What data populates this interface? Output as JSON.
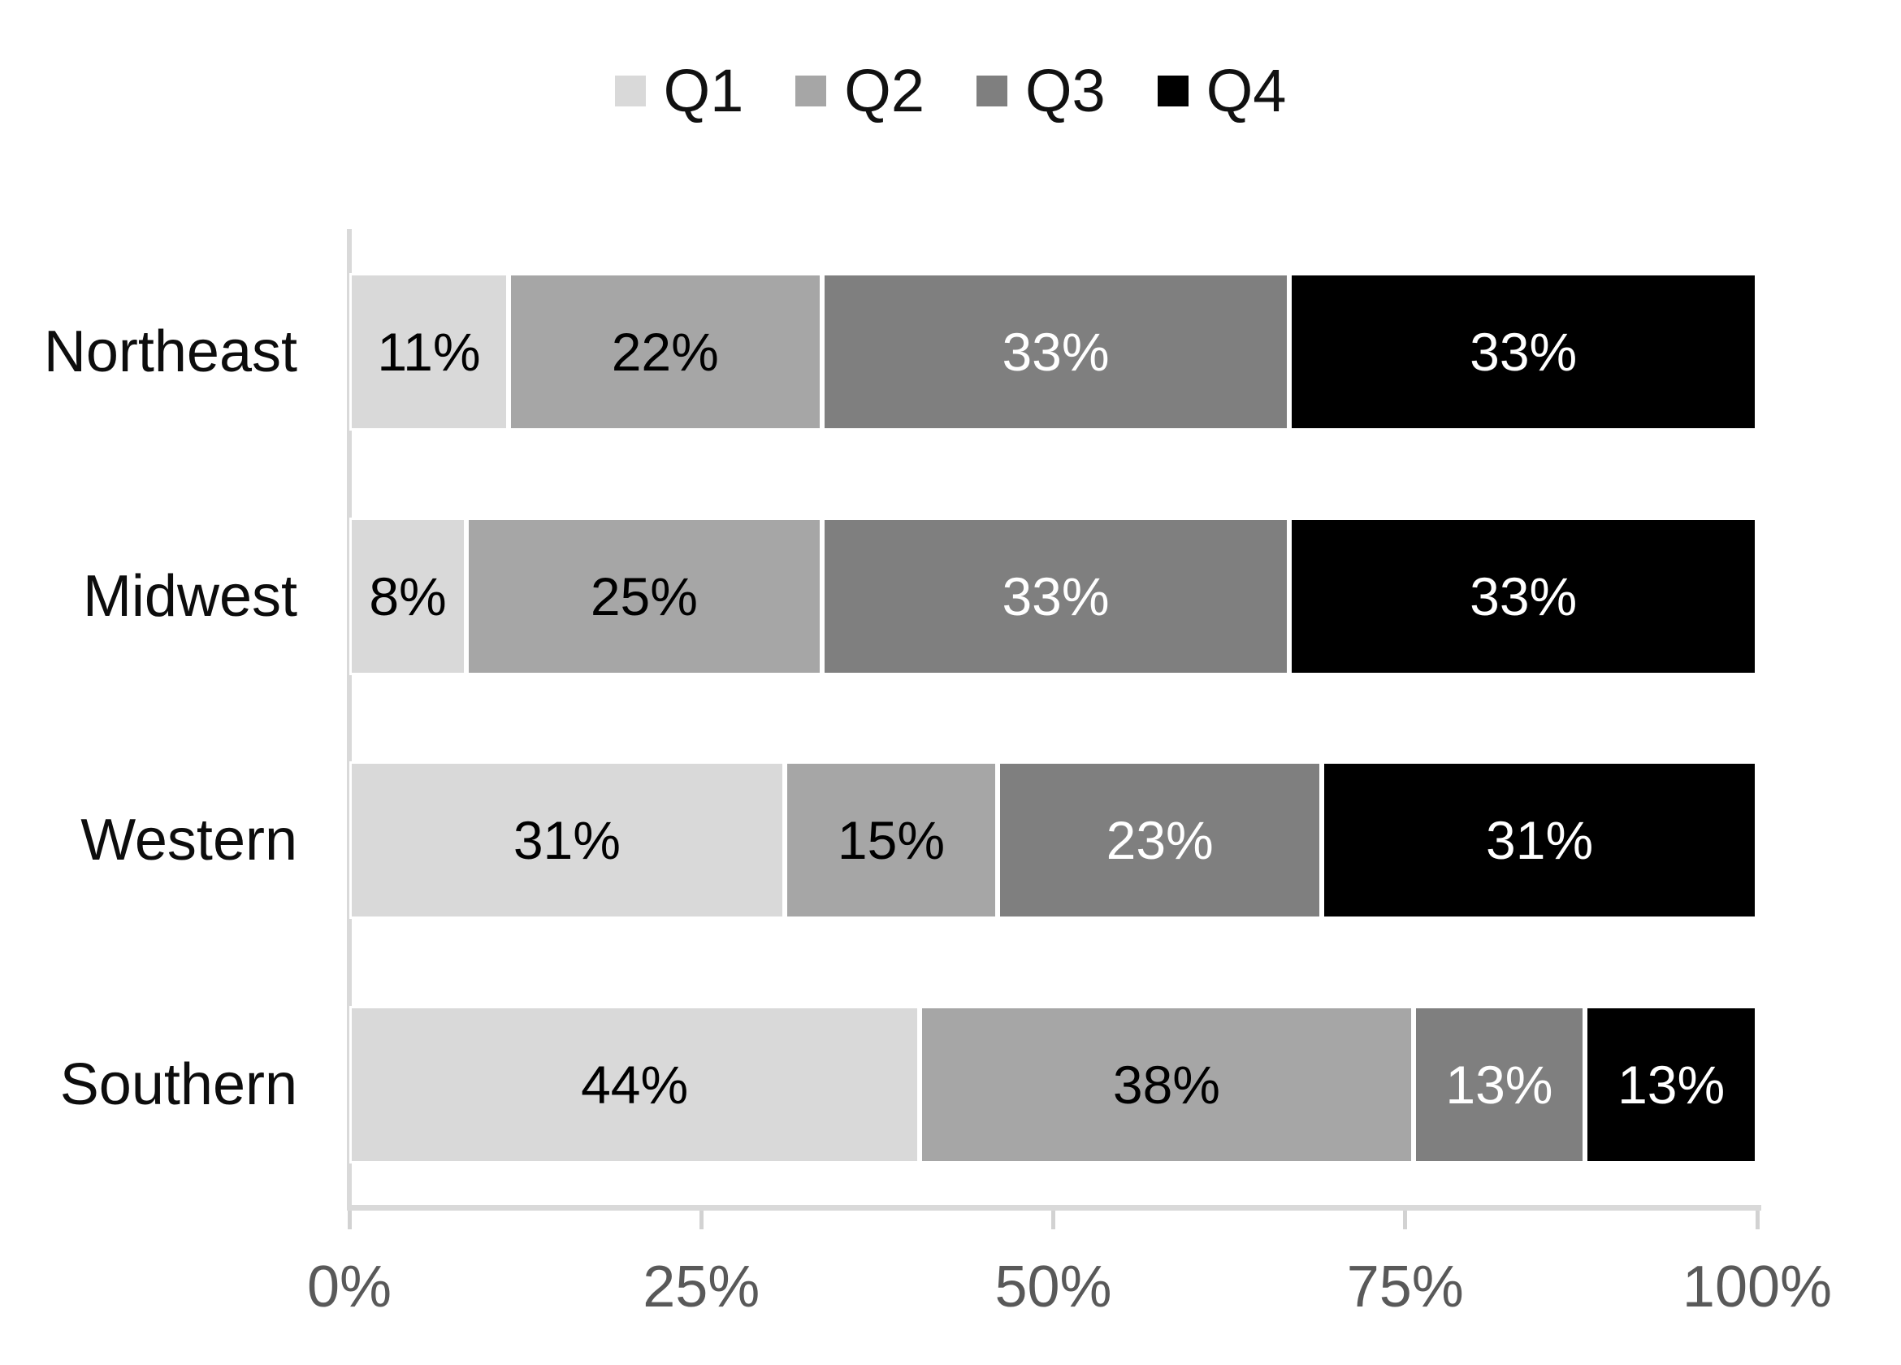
{
  "chart_data": {
    "type": "bar",
    "variant": "horizontal-100pct-stacked",
    "title": "",
    "categories": [
      "Northeast",
      "Midwest",
      "Western",
      "Southern"
    ],
    "series": [
      {
        "name": "Q1",
        "color": "#d9d9d9",
        "label_color": "#000000",
        "values": [
          11,
          8,
          31,
          44
        ]
      },
      {
        "name": "Q2",
        "color": "#a6a6a6",
        "label_color": "#000000",
        "values": [
          22,
          25,
          15,
          38
        ]
      },
      {
        "name": "Q3",
        "color": "#7f7f7f",
        "label_color": "#ffffff",
        "values": [
          33,
          33,
          23,
          13
        ]
      },
      {
        "name": "Q4",
        "color": "#000000",
        "label_color": "#ffffff",
        "values": [
          33,
          33,
          31,
          13
        ]
      }
    ],
    "data_labels": [
      [
        "11%",
        "22%",
        "33%",
        "33%"
      ],
      [
        "8%",
        "25%",
        "33%",
        "33%"
      ],
      [
        "31%",
        "15%",
        "23%",
        "31%"
      ],
      [
        "44%",
        "38%",
        "13%",
        "13%"
      ]
    ],
    "x_axis": {
      "tick_labels": [
        "0%",
        "25%",
        "50%",
        "75%",
        "100%"
      ],
      "range_pct": [
        0,
        100
      ],
      "grid": false
    },
    "legend": {
      "position": "top-center",
      "entries": [
        "Q1",
        "Q2",
        "Q3",
        "Q4"
      ]
    },
    "colors": {
      "axis_line": "#d9d9d9",
      "tick_mark": "#d2d2d2",
      "tick_label": "#595959",
      "category_label": "#0d0d0d",
      "background": "#ffffff"
    }
  }
}
